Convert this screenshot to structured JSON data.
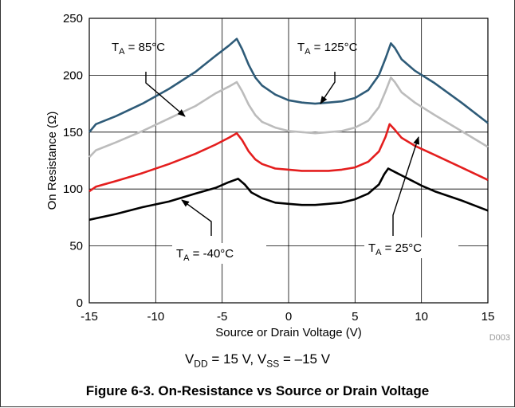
{
  "chart_data": {
    "type": "line",
    "xlabel": "Source or Drain Voltage (V)",
    "ylabel": "On Resistance (Ω)",
    "xlim": [
      -15,
      15
    ],
    "ylim": [
      0,
      250
    ],
    "x_ticks": [
      "-15",
      "-10",
      "-5",
      "0",
      "5",
      "10",
      "15"
    ],
    "y_ticks": [
      "0",
      "50",
      "100",
      "150",
      "200",
      "250"
    ],
    "grid": true,
    "series": [
      {
        "name": "TA = 125°C",
        "color": "#2e5b78",
        "points": [
          [
            -15,
            150
          ],
          [
            -14.5,
            157
          ],
          [
            -13,
            164
          ],
          [
            -11,
            175
          ],
          [
            -9,
            188
          ],
          [
            -7,
            203
          ],
          [
            -5.5,
            217
          ],
          [
            -4.5,
            226
          ],
          [
            -3.9,
            232
          ],
          [
            -3.5,
            223
          ],
          [
            -3,
            209
          ],
          [
            -2.5,
            198
          ],
          [
            -2,
            191
          ],
          [
            -1,
            183
          ],
          [
            0,
            178
          ],
          [
            1,
            176
          ],
          [
            2,
            175
          ],
          [
            3,
            176
          ],
          [
            4,
            177
          ],
          [
            5,
            180
          ],
          [
            6,
            187
          ],
          [
            6.8,
            200
          ],
          [
            7.3,
            215
          ],
          [
            7.7,
            228
          ],
          [
            8,
            224
          ],
          [
            8.5,
            214
          ],
          [
            9.5,
            204
          ],
          [
            11,
            193
          ],
          [
            13,
            176
          ],
          [
            15,
            158
          ]
        ]
      },
      {
        "name": "TA = 85°C",
        "color": "#bcbcbc",
        "points": [
          [
            -15,
            128
          ],
          [
            -14.5,
            134
          ],
          [
            -13,
            141
          ],
          [
            -11,
            151
          ],
          [
            -9,
            162
          ],
          [
            -7,
            173
          ],
          [
            -5.5,
            184
          ],
          [
            -4.5,
            190
          ],
          [
            -3.9,
            194
          ],
          [
            -3.5,
            186
          ],
          [
            -3,
            174
          ],
          [
            -2.5,
            165
          ],
          [
            -2,
            159
          ],
          [
            -1,
            154
          ],
          [
            0,
            151
          ],
          [
            1,
            150
          ],
          [
            2,
            149
          ],
          [
            3,
            150
          ],
          [
            4,
            151
          ],
          [
            5,
            154
          ],
          [
            6,
            160
          ],
          [
            6.8,
            172
          ],
          [
            7.3,
            186
          ],
          [
            7.7,
            198
          ],
          [
            8,
            194
          ],
          [
            8.5,
            185
          ],
          [
            9.5,
            176
          ],
          [
            11,
            165
          ],
          [
            13,
            151
          ],
          [
            15,
            137
          ]
        ]
      },
      {
        "name": "TA = 25°C",
        "color": "#e41e1e",
        "points": [
          [
            -15,
            98
          ],
          [
            -14.5,
            102
          ],
          [
            -13,
            107
          ],
          [
            -11,
            114
          ],
          [
            -9,
            122
          ],
          [
            -7,
            131
          ],
          [
            -5.5,
            139
          ],
          [
            -4.5,
            145
          ],
          [
            -3.9,
            149
          ],
          [
            -3.5,
            143
          ],
          [
            -3,
            133
          ],
          [
            -2.5,
            126
          ],
          [
            -2,
            122
          ],
          [
            -1,
            118
          ],
          [
            0,
            117
          ],
          [
            1,
            116
          ],
          [
            2,
            116
          ],
          [
            3,
            116
          ],
          [
            4,
            117
          ],
          [
            5,
            119
          ],
          [
            6,
            124
          ],
          [
            6.8,
            133
          ],
          [
            7.3,
            146
          ],
          [
            7.6,
            157
          ],
          [
            8,
            152
          ],
          [
            8.5,
            145
          ],
          [
            9.5,
            138
          ],
          [
            11,
            130
          ],
          [
            13,
            119
          ],
          [
            15,
            108
          ]
        ]
      },
      {
        "name": "TA = -40°C",
        "color": "#000000",
        "points": [
          [
            -15,
            73
          ],
          [
            -13,
            78
          ],
          [
            -11,
            84
          ],
          [
            -9,
            89
          ],
          [
            -7,
            96
          ],
          [
            -5.5,
            101
          ],
          [
            -4.5,
            106
          ],
          [
            -3.8,
            109
          ],
          [
            -3.3,
            104
          ],
          [
            -2.8,
            97
          ],
          [
            -2,
            92
          ],
          [
            -1,
            88
          ],
          [
            0,
            87
          ],
          [
            1,
            86
          ],
          [
            2,
            86
          ],
          [
            3,
            87
          ],
          [
            4,
            88
          ],
          [
            5,
            91
          ],
          [
            6,
            96
          ],
          [
            6.8,
            104
          ],
          [
            7.2,
            113
          ],
          [
            7.5,
            118
          ],
          [
            8,
            115
          ],
          [
            9,
            109
          ],
          [
            10,
            103
          ],
          [
            11,
            98
          ],
          [
            13,
            90
          ],
          [
            15,
            81
          ]
        ]
      }
    ],
    "annotations": [
      {
        "main": "T",
        "sub": "A",
        "rest": " = 85°C"
      },
      {
        "main": "T",
        "sub": "A",
        "rest": " = 125°C"
      },
      {
        "main": "T",
        "sub": "A",
        "rest": " = -40°C"
      },
      {
        "main": "T",
        "sub": "A",
        "rest": " = 25°C"
      }
    ],
    "figure_code": "D003"
  },
  "conditions": {
    "vdd_main": "V",
    "vdd_sub": "DD",
    "vdd_rest": " = 15 V, ",
    "vss_main": "V",
    "vss_sub": "SS",
    "vss_rest": " = –15 V"
  },
  "caption": "Figure 6-3. On-Resistance vs Source or Drain Voltage"
}
